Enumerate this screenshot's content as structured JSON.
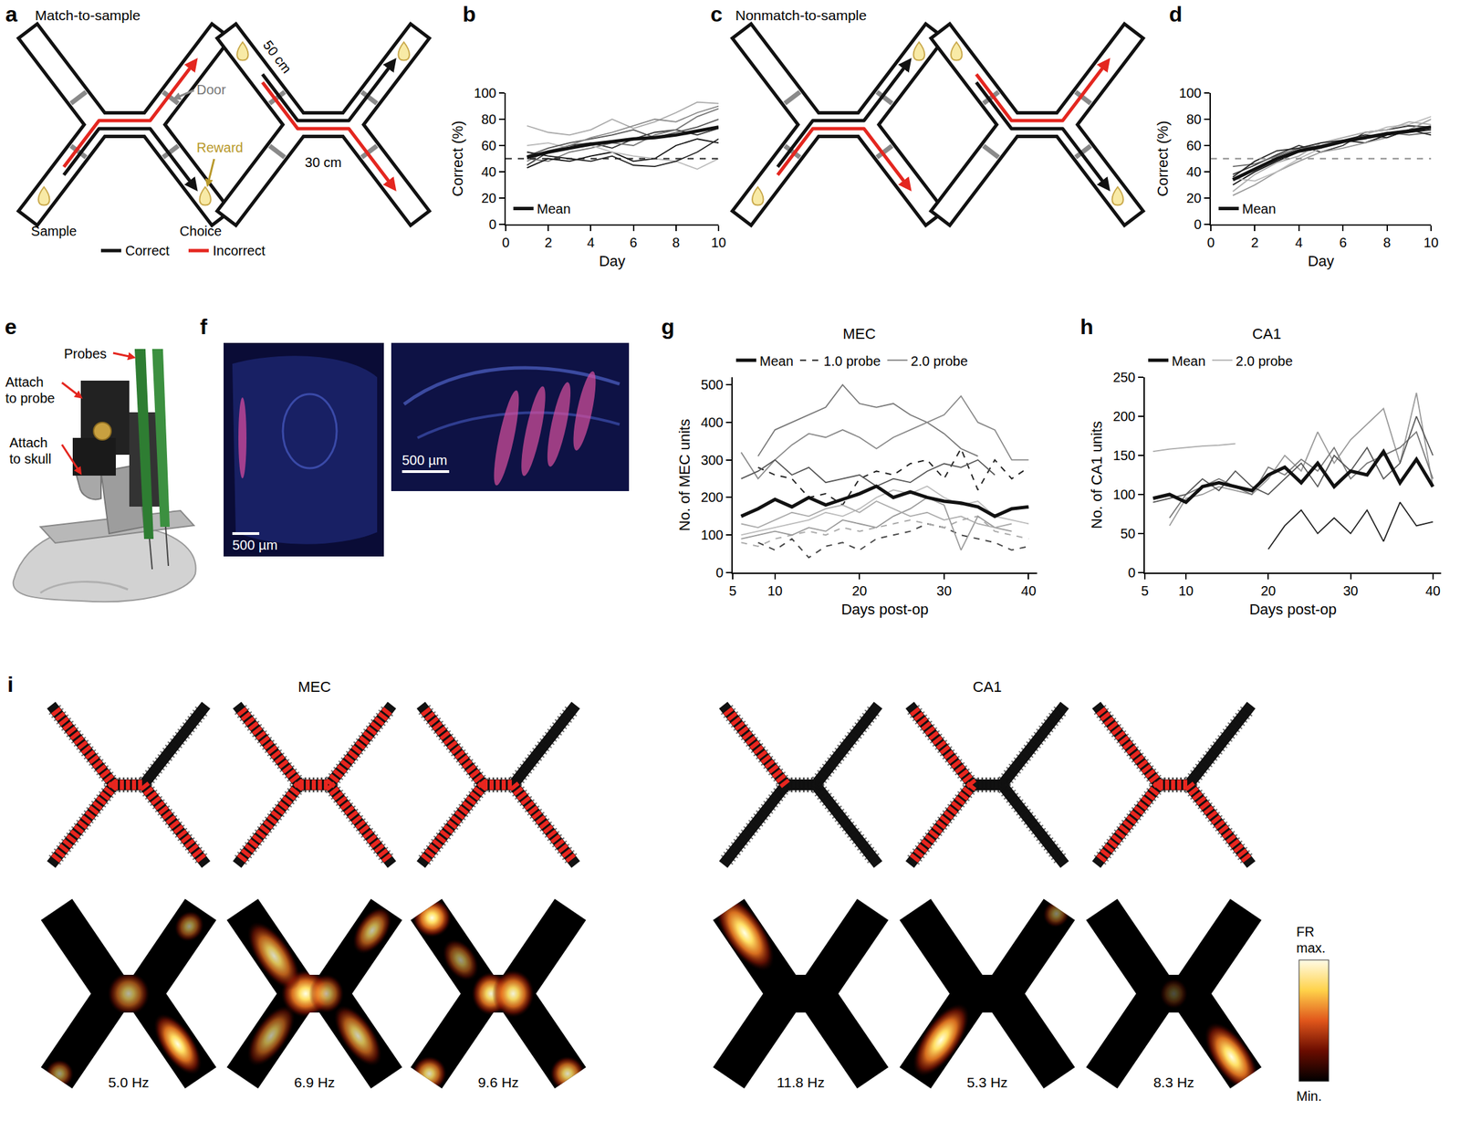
{
  "chart_data": [
    {
      "panel": "b",
      "type": "line",
      "xlabel": "Day",
      "ylabel": "Correct (%)",
      "x": [
        1,
        2,
        3,
        4,
        5,
        6,
        7,
        8,
        9,
        10
      ],
      "xlim": [
        0,
        10
      ],
      "xticks": [
        0,
        2,
        4,
        6,
        8,
        10
      ],
      "ylim": [
        0,
        100
      ],
      "yticks": [
        0,
        20,
        40,
        60,
        80,
        100
      ],
      "grid": false,
      "legend": "bottom left",
      "series": [
        {
          "name": "Mean",
          "color": "#111111",
          "line_style": "thick",
          "values": [
            51,
            55,
            58,
            61,
            63,
            65,
            66,
            68,
            71,
            74
          ]
        },
        {
          "color": "#aaaaaa",
          "line_style": "solid",
          "values": [
            75,
            70,
            68,
            72,
            80,
            73,
            78,
            85,
            93,
            92
          ]
        },
        {
          "color": "#333333",
          "line_style": "solid",
          "values": [
            45,
            55,
            60,
            62,
            58,
            65,
            70,
            72,
            68,
            73
          ]
        },
        {
          "color": "#777777",
          "line_style": "solid",
          "values": [
            50,
            48,
            55,
            58,
            62,
            60,
            68,
            72,
            82,
            88
          ]
        },
        {
          "color": "#111111",
          "line_style": "solid",
          "values": [
            43,
            50,
            48,
            52,
            55,
            48,
            50,
            60,
            65,
            62
          ]
        },
        {
          "color": "#bbbbbb",
          "line_style": "solid",
          "values": [
            60,
            62,
            58,
            60,
            55,
            52,
            50,
            48,
            42,
            50
          ]
        },
        {
          "color": "#555555",
          "line_style": "solid",
          "values": [
            52,
            58,
            62,
            65,
            68,
            72,
            66,
            70,
            74,
            80
          ]
        },
        {
          "color": "#888888",
          "line_style": "solid",
          "values": [
            48,
            56,
            60,
            66,
            70,
            75,
            80,
            78,
            85,
            90
          ]
        },
        {
          "color": "#222222",
          "line_style": "solid",
          "values": [
            55,
            52,
            50,
            48,
            52,
            45,
            44,
            48,
            55,
            65
          ]
        },
        {
          "color": "#222222",
          "line_style": "dashed",
          "x": [
            0,
            10
          ],
          "values": [
            50,
            50
          ]
        }
      ]
    },
    {
      "panel": "d",
      "type": "line",
      "xlabel": "Day",
      "ylabel": "Correct (%)",
      "x": [
        1,
        2,
        3,
        4,
        5,
        6,
        7,
        8,
        9,
        10
      ],
      "xlim": [
        0,
        10
      ],
      "xticks": [
        0,
        2,
        4,
        6,
        8,
        10
      ],
      "ylim": [
        0,
        100
      ],
      "yticks": [
        0,
        20,
        40,
        60,
        80,
        100
      ],
      "grid": false,
      "legend": "bottom left",
      "series": [
        {
          "name": "Mean",
          "color": "#111111",
          "line_style": "thick",
          "values": [
            34,
            42,
            50,
            56,
            59,
            63,
            66,
            69,
            71,
            74
          ]
        },
        {
          "color": "#111111",
          "line_style": "solid",
          "values": [
            30,
            40,
            48,
            55,
            58,
            64,
            62,
            68,
            70,
            72
          ]
        },
        {
          "color": "#333333",
          "line_style": "solid",
          "values": [
            38,
            45,
            53,
            60,
            55,
            60,
            70,
            72,
            75,
            74
          ]
        },
        {
          "color": "#999999",
          "line_style": "solid",
          "values": [
            22,
            30,
            40,
            48,
            55,
            58,
            62,
            66,
            72,
            80
          ]
        },
        {
          "color": "#bbbbbb",
          "line_style": "solid",
          "values": [
            35,
            33,
            40,
            50,
            58,
            62,
            68,
            74,
            76,
            82
          ]
        },
        {
          "color": "#666666",
          "line_style": "solid",
          "values": [
            44,
            46,
            52,
            58,
            60,
            64,
            65,
            70,
            68,
            70
          ]
        },
        {
          "color": "#aaaaaa",
          "line_style": "solid",
          "values": [
            25,
            38,
            47,
            52,
            62,
            66,
            70,
            72,
            78,
            76
          ]
        },
        {
          "color": "#222222",
          "line_style": "solid",
          "values": [
            36,
            48,
            56,
            58,
            62,
            64,
            68,
            66,
            72,
            68
          ]
        },
        {
          "color": "#888888",
          "line_style": "dashed",
          "x": [
            0,
            10
          ],
          "values": [
            50,
            50
          ]
        }
      ]
    },
    {
      "panel": "g",
      "type": "line",
      "title": "MEC",
      "xlabel": "Days post-op",
      "ylabel": "No. of MEC units",
      "x": [
        6,
        8,
        10,
        12,
        14,
        16,
        18,
        20,
        22,
        24,
        26,
        28,
        30,
        32,
        34,
        36,
        38,
        40
      ],
      "xlim": [
        5,
        41
      ],
      "xticks": [
        5,
        10,
        20,
        30,
        40
      ],
      "ylim": [
        0,
        520
      ],
      "yticks": [
        0,
        100,
        200,
        300,
        400,
        500
      ],
      "grid": false,
      "legend": "top",
      "series": [
        {
          "name": "Mean",
          "color": "#111111",
          "line_style": "thick",
          "values": [
            150,
            170,
            195,
            175,
            200,
            180,
            195,
            210,
            230,
            200,
            215,
            200,
            190,
            185,
            175,
            150,
            170,
            175
          ]
        },
        {
          "name": "1.0 probe",
          "color": "#222222",
          "line_style": "dashed",
          "values": [
            null,
            280,
            260,
            250,
            200,
            210,
            180,
            250,
            270,
            260,
            290,
            300,
            250,
            330,
            220,
            300,
            250,
            280
          ]
        },
        {
          "name": "1.0 probe",
          "color": "#444444",
          "line_style": "dashed",
          "values": [
            null,
            80,
            60,
            90,
            40,
            70,
            80,
            60,
            90,
            100,
            110,
            130,
            120,
            100,
            90,
            80,
            60,
            70
          ]
        },
        {
          "name": "1.0 probe",
          "color": "#aaaaaa",
          "line_style": "dashed",
          "values": [
            80,
            70,
            90,
            100,
            110,
            100,
            120,
            110,
            120,
            130,
            140,
            130,
            120,
            140,
            150,
            110,
            100,
            90
          ]
        },
        {
          "name": "2.0 probe",
          "color": "#777777",
          "line_style": "solid",
          "values": [
            null,
            310,
            380,
            400,
            420,
            440,
            500,
            450,
            440,
            450,
            420,
            400,
            370,
            330,
            310,
            null,
            null,
            null
          ]
        },
        {
          "name": "2.0 probe",
          "color": "#888888",
          "line_style": "solid",
          "values": [
            320,
            250,
            300,
            340,
            370,
            360,
            380,
            360,
            330,
            360,
            380,
            400,
            420,
            470,
            400,
            380,
            300,
            300
          ]
        },
        {
          "name": "2.0 probe",
          "color": "#555555",
          "line_style": "solid",
          "values": [
            250,
            270,
            300,
            260,
            280,
            240,
            250,
            260,
            230,
            250,
            240,
            270,
            290,
            280,
            300,
            260,
            null,
            null
          ]
        },
        {
          "name": "2.0 probe",
          "color": "#bbbbbb",
          "line_style": "solid",
          "values": [
            100,
            110,
            120,
            130,
            140,
            160,
            150,
            170,
            200,
            220,
            210,
            230,
            200,
            180,
            190,
            150,
            140,
            130
          ]
        },
        {
          "name": "2.0 probe",
          "color": "#999999",
          "line_style": "solid",
          "values": [
            90,
            100,
            110,
            100,
            120,
            110,
            140,
            130,
            120,
            150,
            170,
            200,
            180,
            60,
            150,
            120,
            110,
            null
          ]
        },
        {
          "name": "2.0 probe",
          "color": "#aaaaaa",
          "line_style": "solid",
          "values": [
            130,
            120,
            140,
            160,
            150,
            170,
            180,
            160,
            190,
            170,
            150,
            160,
            140,
            150,
            130,
            120,
            130,
            null
          ]
        }
      ]
    },
    {
      "panel": "h",
      "type": "line",
      "title": "CA1",
      "xlabel": "Days post-op",
      "ylabel": "No. of CA1 units",
      "x": [
        6,
        8,
        10,
        12,
        14,
        16,
        18,
        20,
        22,
        24,
        26,
        28,
        30,
        32,
        34,
        36,
        38,
        40
      ],
      "xlim": [
        5,
        41
      ],
      "xticks": [
        5,
        10,
        20,
        30,
        40
      ],
      "ylim": [
        0,
        250
      ],
      "yticks": [
        0,
        50,
        100,
        150,
        200,
        250
      ],
      "grid": false,
      "legend": "top",
      "series": [
        {
          "name": "Mean",
          "color": "#111111",
          "line_style": "thick",
          "values": [
            95,
            100,
            90,
            110,
            115,
            110,
            105,
            125,
            135,
            115,
            140,
            110,
            130,
            125,
            155,
            115,
            145,
            110
          ]
        },
        {
          "name": "2.0 probe",
          "color": "#aaaaaa",
          "line_style": "solid",
          "values": [
            155,
            158,
            160,
            162,
            163,
            165,
            null,
            null,
            null,
            null,
            null,
            null,
            null,
            null,
            null,
            null,
            null,
            null
          ]
        },
        {
          "name": "2.0 probe",
          "color": "#999999",
          "line_style": "solid",
          "values": [
            null,
            60,
            95,
            100,
            110,
            105,
            100,
            120,
            150,
            130,
            180,
            140,
            170,
            190,
            210,
            140,
            230,
            110
          ]
        },
        {
          "name": "2.0 probe",
          "color": "#777777",
          "line_style": "solid",
          "values": [
            null,
            70,
            100,
            110,
            120,
            110,
            100,
            135,
            125,
            145,
            130,
            160,
            120,
            140,
            150,
            160,
            180,
            120
          ]
        },
        {
          "name": "2.0 probe",
          "color": "#222222",
          "line_style": "solid",
          "values": [
            null,
            null,
            null,
            null,
            null,
            null,
            null,
            30,
            60,
            80,
            50,
            70,
            50,
            80,
            40,
            90,
            60,
            65
          ]
        },
        {
          "name": "2.0 probe",
          "color": "#555555",
          "line_style": "solid",
          "values": [
            90,
            95,
            100,
            120,
            105,
            130,
            110,
            100,
            120,
            140,
            110,
            150,
            130,
            160,
            120,
            140,
            200,
            150
          ]
        }
      ]
    }
  ],
  "diagrams": {
    "a": {
      "panel": "a",
      "title": "Match-to-sample",
      "labels": {
        "door": "Door",
        "reward": "Reward",
        "sample": "Sample",
        "choice": "Choice",
        "arm_length": "50 cm",
        "corridor_length": "30 cm"
      },
      "legend": [
        {
          "name": "Correct",
          "color": "#111111"
        },
        {
          "name": "Incorrect",
          "color": "#e4261f"
        }
      ]
    },
    "c": {
      "panel": "c",
      "title": "Nonmatch-to-sample"
    },
    "e": {
      "panel": "e",
      "labels": {
        "probes": [
          "Probes"
        ],
        "attach_probe": [
          "Attach",
          "to probe"
        ],
        "attach_skull": [
          "Attach",
          "to skull"
        ]
      }
    },
    "f": {
      "panel": "f",
      "scale_bars": [
        "500 µm",
        "500 µm"
      ]
    },
    "i": {
      "panel": "i",
      "groups": [
        {
          "title": "MEC",
          "peak_rates": [
            "5.0 Hz",
            "6.9 Hz",
            "9.6 Hz"
          ]
        },
        {
          "title": "CA1",
          "peak_rates": [
            "11.8 Hz",
            "5.3 Hz",
            "8.3 Hz"
          ]
        }
      ],
      "colorbar": {
        "top": [
          "FR",
          "max."
        ],
        "bottom": "Min."
      }
    }
  }
}
